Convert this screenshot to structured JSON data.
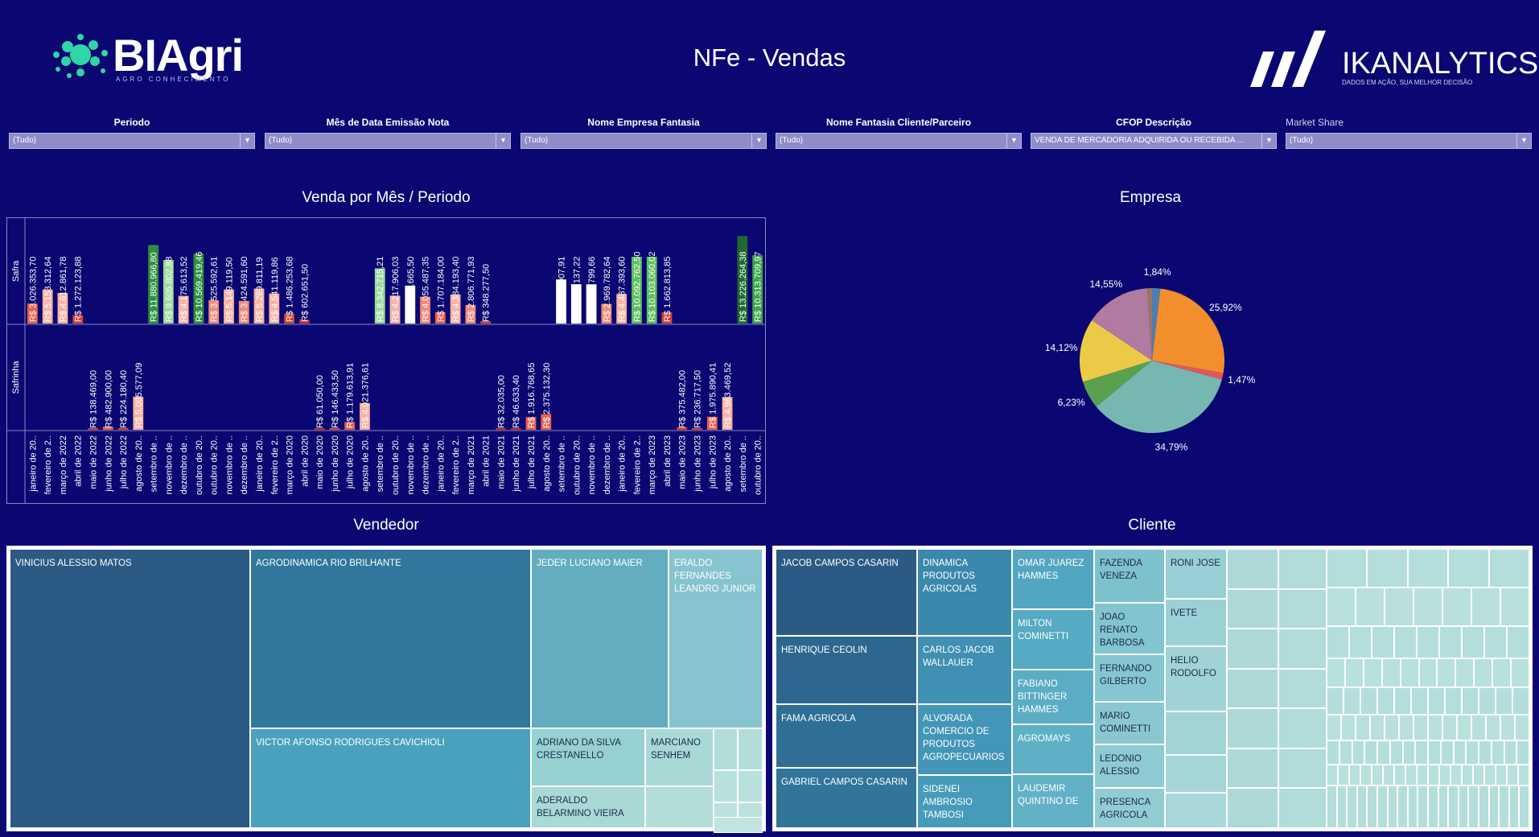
{
  "header": {
    "title": "NFe - Vendas",
    "biagri_word": "BIAgri",
    "biagri_tagline": "AGRO CONHECIMENTO",
    "ika_word": "IKANALYTICS",
    "ika_tagline": "DADOS EM AÇÃO, SUA MELHOR DECISÃO"
  },
  "filters": [
    {
      "label": "Periodo",
      "value": "(Tudo)"
    },
    {
      "label": "Mês de Data Emissão Nota",
      "value": "(Tudo)"
    },
    {
      "label": "Nome Empresa Fantasia",
      "value": "(Tudo)"
    },
    {
      "label": "Nome Fantasia Cliente/Parceiro",
      "value": "(Tudo)"
    },
    {
      "label": "CFOP Descrição",
      "value": "VENDA DE MERCADORIA ADQUIRIDA OU RECEBIDA ..."
    },
    {
      "label": "Market Share",
      "value": "(Tudo)"
    }
  ],
  "sections": {
    "bar_title": "Venda por Mês / Periodo",
    "pie_title": "Empresa",
    "vendedor_title": "Vendedor",
    "cliente_title": "Cliente"
  },
  "chart_data": [
    {
      "type": "bar",
      "title": "Venda por Mês / Periodo",
      "rows": [
        "Safra",
        "Safrinha"
      ],
      "categories": [
        "janeiro de 20..",
        "fevereiro de 2..",
        "março de 2022",
        "abril de 2022",
        "maio de 2022",
        "junho de 2022",
        "julho de 2022",
        "agosto de 20..",
        "setembro de ..",
        "novembro de ..",
        "dezembro de ..",
        "outubro de 20..",
        "outubro de 20..",
        "novembro de ..",
        "dezembro de ..",
        "janeiro de 20..",
        "fevereiro de 2..",
        "março de 2020",
        "abril de 2020",
        "maio de 2020",
        "junho de 2020",
        "julho de 2020",
        "agosto de 20..",
        "setembro de ..",
        "outubro de 20..",
        "novembro de ..",
        "dezembro de ..",
        "janeiro de 20..",
        "fevereiro de 2..",
        "março de 2021",
        "abril de 2021",
        "maio de 2021",
        "junho de 2021",
        "julho de 2021",
        "agosto de 20..",
        "setembro de ..",
        "outubro de 20..",
        "novembro de ..",
        "dezembro de ..",
        "janeiro de 20..",
        "fevereiro de 2..",
        "março de 2023",
        "abril de 2023",
        "maio de 2023",
        "junho de 2023",
        "julho de 2023",
        "agosto de 20..",
        "setembro de ..",
        "outubro de 20.."
      ],
      "series": [
        {
          "name": "Safra",
          "values": [
            3026353.7,
            5153312.64,
            4612861.78,
            1272123.88,
            null,
            null,
            null,
            null,
            11880966.8,
            9605802.88,
            4175613.52,
            10569419.46,
            3525592.61,
            5149119.5,
            3424591.6,
            5289811.19,
            4541119.86,
            1486253.68,
            602651.5,
            null,
            null,
            null,
            null,
            8342715.21,
            4217906.03,
            5735665.5,
            4055487.35,
            1707184.0,
            4384193.4,
            2806771.93,
            348277.5,
            null,
            null,
            null,
            null,
            6662907.91,
            5945137.22,
            5933799.66,
            2969782.64,
            4487393.6,
            10092762.5,
            10103060.02,
            1662813.85,
            null,
            null,
            null,
            null,
            13226264.38,
            10313709.97
          ],
          "labels": [
            "R$ 3.026.353,70",
            "R$ 5.153.312,64",
            "R$ 4.612.861,78",
            "R$ 1.272.123,88",
            "",
            "",
            "",
            "",
            "R$ 11.880.966,80",
            "R$ 9.605.802,88",
            "R$ 4.175.613,52",
            "R$ 10.569.419,46",
            "R$ 3.525.592,61",
            "R$ 5.149.119,50",
            "R$ 3.424.591,60",
            "R$ 5.289.811,19",
            "R$ 4.541.119,86",
            "R$ 1.486.253,68",
            "R$ 602.651,50",
            "",
            "",
            "",
            "",
            "R$ 8.342.715,21",
            "R$ 4.217.906,03",
            "R$ 5.735.665,50",
            "R$ 4.055.487,35",
            "R$ 1.707.184,00",
            "R$ 4.384.193,40",
            "R$ 2.806.771,93",
            "R$ 348.277,50",
            "",
            "",
            "",
            "",
            "R$ 6.662.907,91",
            "R$ 5.945.137,22",
            "R$ 5.933.799,66",
            "R$ 2.969.782,64",
            "R$ 4.487.393,60",
            "R$ 10.092.762,50",
            "R$ 10.103.060,02",
            "R$ 1.662.813,85",
            "",
            "",
            "",
            "",
            "R$ 13.226.264,38",
            "R$ 10.313.709,97"
          ],
          "colors": [
            "#e8604f",
            "#f7b3a6",
            "#f7b3a6",
            "#d64237",
            null,
            null,
            null,
            null,
            "#2d8f3f",
            "#9ad99a",
            "#f7b3a6",
            "#2d8f3f",
            "#f08a78",
            "#f7b3a6",
            "#f08a78",
            "#f7b3a6",
            "#f7b3a6",
            "#d64237",
            "#c2302a",
            null,
            null,
            null,
            null,
            "#9ad99a",
            "#f7b3a6",
            "#ffffff",
            "#f08a78",
            "#e8604f",
            "#f7b3a6",
            "#f08a78",
            "#d64237",
            null,
            null,
            null,
            null,
            "#ffffff",
            "#ffffff",
            "#ffffff",
            "#f08a78",
            "#f7b3a6",
            "#5dbf5d",
            "#5dbf5d",
            "#d64237",
            null,
            null,
            null,
            null,
            "#1f6b2e",
            "#3fa64a"
          ]
        },
        {
          "name": "Safrinha",
          "values": [
            null,
            null,
            null,
            null,
            138469.0,
            482900.0,
            224180.4,
            5005577.09,
            null,
            null,
            null,
            null,
            null,
            null,
            null,
            null,
            null,
            null,
            null,
            61050.0,
            146433.5,
            1179613.91,
            4021376.61,
            null,
            null,
            null,
            null,
            null,
            null,
            null,
            null,
            32035.0,
            46633.4,
            1916768.65,
            2375132.3,
            null,
            null,
            null,
            null,
            null,
            null,
            null,
            null,
            375482.0,
            236717.5,
            1975890.41,
            4963469.52,
            null,
            null
          ],
          "labels": [
            "",
            "",
            "",
            "",
            "R$ 138.469,00",
            "R$ 482.900,00",
            "R$ 224.180,40",
            "R$ 5.005.577,09",
            "",
            "",
            "",
            "",
            "",
            "",
            "",
            "",
            "",
            "",
            "",
            "R$ 61.050,00",
            "R$ 146.433,50",
            "R$ 1.179.613,91",
            "R$ 4.021.376,61",
            "",
            "",
            "",
            "",
            "",
            "",
            "",
            "",
            "R$ 32.035,00",
            "R$ 46.633,40",
            "R$ 1.916.768,65",
            "R$ 2.375.132,30",
            "",
            "",
            "",
            "",
            "",
            "",
            "",
            "",
            "R$ 375.482,00",
            "R$ 236.717,50",
            "R$ 1.975.890,41",
            "R$ 4.963.469,52",
            "",
            ""
          ],
          "colors": [
            null,
            null,
            null,
            null,
            "#d64237",
            "#e8604f",
            "#d64237",
            "#f7b3a6",
            null,
            null,
            null,
            null,
            null,
            null,
            null,
            null,
            null,
            null,
            null,
            "#c2302a",
            "#d64237",
            "#e8604f",
            "#f7b3a6",
            null,
            null,
            null,
            null,
            null,
            null,
            null,
            null,
            "#c2302a",
            "#c2302a",
            "#e8604f",
            "#e8604f",
            null,
            null,
            null,
            null,
            null,
            null,
            null,
            null,
            "#d64237",
            "#d64237",
            "#e8604f",
            "#f7b3a6",
            null,
            null
          ]
        }
      ],
      "ylim": [
        0,
        14000000
      ]
    },
    {
      "type": "pie",
      "title": "Empresa",
      "slices": [
        {
          "value": 1.84,
          "label": "1,84%",
          "color": "#4a7fb5"
        },
        {
          "value": 25.92,
          "label": "25,92%",
          "color": "#f28e2b"
        },
        {
          "value": 1.47,
          "label": "1,47%",
          "color": "#e15759"
        },
        {
          "value": 34.79,
          "label": "34,79%",
          "color": "#76b7b2"
        },
        {
          "value": 6.23,
          "label": "6,23%",
          "color": "#59a14f"
        },
        {
          "value": 14.12,
          "label": "14,12%",
          "color": "#edc948"
        },
        {
          "value": 14.55,
          "label": "14,55%",
          "color": "#b07aa1"
        },
        {
          "value": 1.08,
          "label": "",
          "color": "#9c755f"
        }
      ]
    }
  ],
  "vendedor": {
    "items": [
      "VINICIUS ALESSIO MATOS",
      "AGRODINAMICA RIO BRILHANTE",
      "JEDER LUCIANO MAIER",
      "ERALDO FERNANDES LEANDRO JUNIOR",
      "VICTOR AFONSO RODRIGUES CAVICHIOLI",
      "ADRIANO DA SILVA CRESTANELLO",
      "MARCIANO SENHEM",
      "ADERALDO BELARMINO VIEIRA"
    ]
  },
  "cliente": {
    "items": [
      "JACOB CAMPOS CASARIN",
      "HENRIQUE CEOLIN",
      "FAMA AGRICOLA",
      "GABRIEL CAMPOS CASARIN",
      "DINAMICA PRODUTOS AGRICOLAS",
      "CARLOS JACOB WALLAUER",
      "ALVORADA COMERCIO DE PRODUTOS AGROPECUARIOS",
      "SIDENEI AMBROSIO TAMBOSI",
      "OMAR JUAREZ HAMMES",
      "MILTON COMINETTI",
      "FABIANO BITTINGER HAMMES",
      "AGROMAYS",
      "LAUDEMIR QUINTINO DE",
      "FAZENDA VENEZA",
      "JOAO RENATO BARBOSA",
      "FERNANDO GILBERTO",
      "MARIO COMINETTI",
      "LEDONIO ALESSIO",
      "PRESENCA AGRICOLA",
      "RONI JOSE",
      "IVETE",
      "HELIO RODOLFO"
    ]
  }
}
